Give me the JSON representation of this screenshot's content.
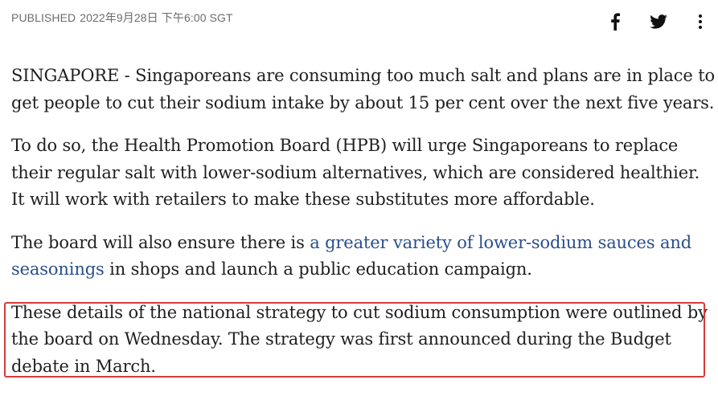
{
  "meta": {
    "published_label": "PUBLISHED",
    "date": "2022年9月28日 下午6:00 SGT"
  },
  "share": {
    "facebook_icon": "facebook-icon",
    "twitter_icon": "twitter-icon",
    "more_icon": "more-icon"
  },
  "article": {
    "p1": "SINGAPORE - Singaporeans are consuming too much salt and plans are in place to get people to cut their sodium intake by about 15 per cent over the next five years.",
    "p2": "To do so, the Health Promotion Board (HPB) will urge Singaporeans to replace their regular salt with lower-sodium alternatives, which are considered healthier. It will work with retailers to make these substitutes more affordable.",
    "p3_before": "The board will also ensure there is ",
    "p3_link": "a greater variety of lower-sodium sauces and seasonings",
    "p3_after": " in shops and launch a public education campaign.",
    "p4": "These details of the national strategy to cut sodium consumption were outlined by the board on Wednesday. The strategy was first announced during the Budget debate in March."
  },
  "colors": {
    "link": "#2a4f8a",
    "highlight_border": "#d93a3a"
  }
}
